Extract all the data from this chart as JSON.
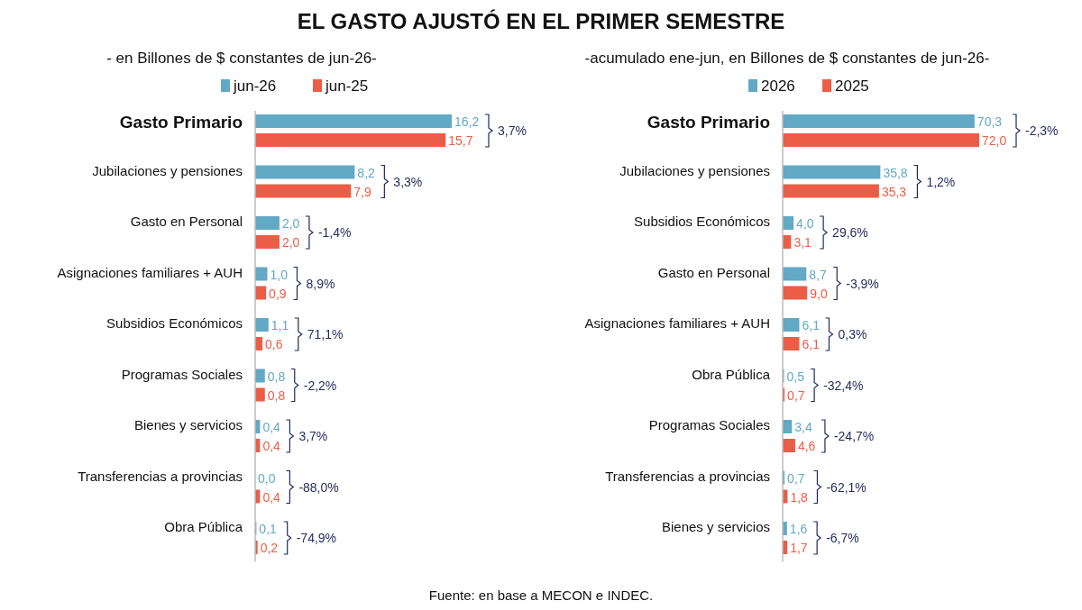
{
  "chart_data": [
    {
      "type": "bar",
      "orientation": "horizontal",
      "title": "EL GASTO AJUSTÓ EN EL PRIMER SEMESTRE",
      "subtitle": "- en Billones de $ constantes de jun-26-",
      "legend": "top",
      "categories": [
        "Gasto Primario",
        "Jubilaciones y pensiones",
        "Gasto en Personal",
        "Asignaciones familiares + AUH",
        "Subsidios Económicos",
        "Programas Sociales",
        "Bienes y servicios",
        "Transferencias a provincias",
        "Obra Pública"
      ],
      "series": [
        {
          "name": "jun-26",
          "color": "#62a9c6",
          "values": [
            16.2,
            8.2,
            2.0,
            1.0,
            1.1,
            0.8,
            0.4,
            0.0,
            0.1
          ],
          "value_labels": [
            "16,2",
            "8,2",
            "2,0",
            "1,0",
            "1,1",
            "0,8",
            "0,4",
            "0,0",
            "0,1"
          ]
        },
        {
          "name": "jun-25",
          "color": "#ec5d47",
          "values": [
            15.7,
            7.9,
            2.0,
            0.9,
            0.6,
            0.8,
            0.4,
            0.4,
            0.2
          ],
          "value_labels": [
            "15,7",
            "7,9",
            "2,0",
            "0,9",
            "0,6",
            "0,8",
            "0,4",
            "0,4",
            "0,2"
          ]
        }
      ],
      "annotations": [
        "3,7%",
        "3,3%",
        "-1,4%",
        "8,9%",
        "71,1%",
        "-2,2%",
        "3,7%",
        "-88,0%",
        "-74,9%",
        "Fuente: en base a MECON e INDEC."
      ]
    },
    {
      "type": "bar",
      "orientation": "horizontal",
      "subtitle": "-acumulado ene-jun, en Billones de $ constantes de jun-26-",
      "legend": "top",
      "categories": [
        "Gasto Primario",
        "Jubilaciones y pensiones",
        "Subsidios Económicos",
        "Gasto en Personal",
        "Asignaciones familiares + AUH",
        "Obra Pública",
        "Programas Sociales",
        "Transferencias a provincias",
        "Bienes y servicios"
      ],
      "series": [
        {
          "name": "2026",
          "color": "#62a9c6",
          "values": [
            70.3,
            35.8,
            4.0,
            8.7,
            6.1,
            0.5,
            3.4,
            0.7,
            1.6
          ],
          "value_labels": [
            "70,3",
            "35,8",
            "4,0",
            "8,7",
            "6,1",
            "0,5",
            "3,4",
            "0,7",
            "1,6"
          ]
        },
        {
          "name": "2025",
          "color": "#ec5d47",
          "values": [
            72.0,
            35.3,
            3.1,
            9.0,
            6.1,
            0.7,
            4.6,
            1.8,
            1.7
          ],
          "value_labels": [
            "72,0",
            "35,3",
            "3,1",
            "9,0",
            "6,1",
            "0,7",
            "4,6",
            "1,8",
            "1,7"
          ]
        }
      ],
      "annotations": [
        "-2,3%",
        "1,2%",
        "29,6%",
        "-3,9%",
        "0,3%",
        "-32,4%",
        "-24,7%",
        "-62,1%",
        "-6,7%"
      ]
    }
  ]
}
